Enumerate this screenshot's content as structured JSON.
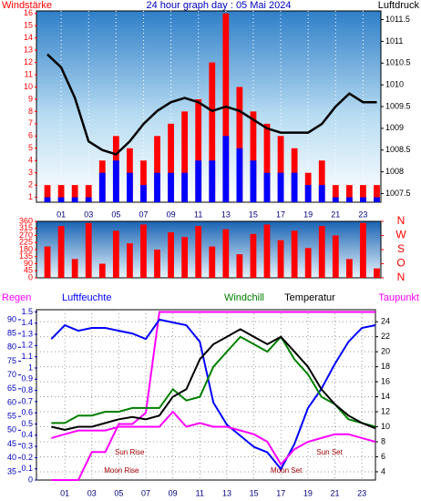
{
  "chart_data": [
    {
      "type": "combo",
      "title": "24 hour graph day : 05 Mai 2024",
      "y_label": "Windstärke",
      "y2_label": "Luftdruck",
      "x": [
        0,
        1,
        2,
        3,
        4,
        5,
        6,
        7,
        8,
        9,
        10,
        11,
        12,
        13,
        14,
        15,
        16,
        17,
        18,
        19,
        20,
        21,
        22,
        23,
        24
      ],
      "xlim": [
        -0.8,
        24.3
      ],
      "xticks": [
        {
          "value": 1,
          "label": "01"
        },
        {
          "value": 3,
          "label": "03"
        },
        {
          "value": 5,
          "label": "05"
        },
        {
          "value": 7,
          "label": "07"
        },
        {
          "value": 9,
          "label": "09"
        },
        {
          "value": 11,
          "label": "11"
        },
        {
          "value": 13,
          "label": "13"
        },
        {
          "value": 15,
          "label": "15"
        },
        {
          "value": 17,
          "label": "17"
        },
        {
          "value": 19,
          "label": "19"
        },
        {
          "value": 21,
          "label": "21"
        },
        {
          "value": 23,
          "label": "23"
        }
      ],
      "ylim": [
        0.6,
        16.2
      ],
      "yticks": [
        1,
        2,
        3,
        4,
        5,
        6,
        7,
        8,
        9,
        10,
        11,
        12,
        13,
        14,
        15,
        16
      ],
      "y2lim": [
        1007.3,
        1011.7
      ],
      "y2ticks": [
        1007.5,
        1008,
        1008.5,
        1009,
        1009.5,
        1010,
        1010.5,
        1011,
        1011.5
      ],
      "grid": true,
      "series": [
        {
          "mark": "bar",
          "color": "#ff0000",
          "values": [
            2,
            2,
            2,
            2,
            4,
            6,
            5,
            4,
            6,
            7,
            8,
            9,
            12,
            16,
            10,
            8,
            7,
            6,
            5,
            3,
            4,
            2,
            2,
            2,
            2
          ]
        },
        {
          "mark": "bar",
          "color": "#0000ff",
          "values": [
            1,
            1,
            1,
            1,
            3,
            4,
            3,
            2,
            3,
            3,
            3,
            4,
            4,
            6,
            5,
            4,
            3,
            3,
            3,
            2,
            2,
            1,
            1,
            1,
            1
          ]
        },
        {
          "mark": "line",
          "axis": "y2",
          "color": "#000000",
          "values": [
            1010.7,
            1010.4,
            1009.7,
            1008.7,
            1008.5,
            1008.4,
            1008.7,
            1009.1,
            1009.4,
            1009.6,
            1009.7,
            1009.6,
            1009.4,
            1009.5,
            1009.4,
            1009.2,
            1009.0,
            1008.9,
            1008.9,
            1008.9,
            1009.1,
            1009.5,
            1009.8,
            1009.6,
            1009.6
          ]
        }
      ]
    },
    {
      "type": "bar",
      "x": [
        0,
        1,
        2,
        3,
        4,
        5,
        6,
        7,
        8,
        9,
        10,
        11,
        12,
        13,
        14,
        15,
        16,
        17,
        18,
        19,
        20,
        21,
        22,
        23,
        24
      ],
      "xlim": [
        -0.8,
        24.3
      ],
      "ylim": [
        0,
        360
      ],
      "yticks": [
        0,
        45,
        90,
        135,
        180,
        225,
        270,
        315,
        360
      ],
      "y2lim": [
        0,
        360
      ],
      "y2ticks": [
        {
          "value": 360,
          "label": "N"
        },
        {
          "value": 270,
          "label": "W"
        },
        {
          "value": 180,
          "label": "S"
        },
        {
          "value": 90,
          "label": "O"
        },
        {
          "value": 0,
          "label": "N"
        }
      ],
      "grid": false,
      "series": [
        {
          "mark": "bar",
          "color": "#ff0000",
          "values": [
            200,
            330,
            120,
            350,
            90,
            300,
            220,
            340,
            180,
            290,
            260,
            330,
            200,
            310,
            150,
            280,
            340,
            240,
            300,
            190,
            330,
            270,
            120,
            350,
            60
          ]
        }
      ]
    },
    {
      "type": "line",
      "x": [
        0,
        1,
        2,
        3,
        4,
        5,
        6,
        7,
        8,
        9,
        10,
        11,
        12,
        13,
        14,
        15,
        16,
        17,
        18,
        19,
        20,
        21,
        22,
        23,
        24
      ],
      "xlim": [
        -1.1,
        24
      ],
      "xticks": [
        {
          "value": 1,
          "label": "01"
        },
        {
          "value": 3,
          "label": "03"
        },
        {
          "value": 5,
          "label": "05"
        },
        {
          "value": 7,
          "label": "07"
        },
        {
          "value": 9,
          "label": "09"
        },
        {
          "value": 11,
          "label": "11"
        },
        {
          "value": 13,
          "label": "13"
        },
        {
          "value": 15,
          "label": "15"
        },
        {
          "value": 17,
          "label": "17"
        },
        {
          "value": 19,
          "label": "19"
        },
        {
          "value": 21,
          "label": "21"
        },
        {
          "value": 23,
          "label": "23"
        }
      ],
      "ylim": [
        32,
        93.6
      ],
      "yticks": [
        35,
        40,
        45,
        50,
        55,
        60,
        65,
        70,
        75,
        80,
        85,
        90
      ],
      "y2lim": [
        2.9,
        25.6
      ],
      "y2ticks": [
        4,
        6,
        8,
        10,
        12,
        14,
        16,
        18,
        20,
        22,
        24
      ],
      "y3lim": [
        0,
        1.52
      ],
      "y3ticks": [
        0,
        0.1,
        0.2,
        0.3,
        0.4,
        0.5,
        0.6,
        0.7,
        0.8,
        0.9,
        1,
        1.1,
        1.2,
        1.3,
        1.4,
        1.5
      ],
      "grid": true,
      "series": [
        {
          "name": "Regen",
          "axis": "y3",
          "color": "#ff00ff",
          "values": [
            0,
            0,
            0,
            0.25,
            0.25,
            0.5,
            0.5,
            0.6,
            1.5,
            1.5,
            1.5,
            1.5,
            1.5,
            1.5,
            1.5,
            1.5,
            1.5,
            1.5,
            1.5,
            1.5,
            1.5,
            1.5,
            1.5,
            1.5,
            1.5
          ]
        },
        {
          "name": "Luftfeuchte",
          "axis": "y",
          "color": "#0000ff",
          "values": [
            83,
            88,
            86,
            87,
            87,
            86,
            85,
            83,
            90,
            89,
            88,
            82,
            60,
            52,
            48,
            44,
            42,
            36,
            45,
            58,
            65,
            74,
            82,
            87,
            88
          ]
        },
        {
          "name": "Windchill",
          "axis": "y2",
          "color": "#008000",
          "values": [
            10.5,
            10.5,
            11.5,
            11.5,
            12,
            12,
            12.5,
            12.5,
            12.5,
            15,
            13.5,
            14,
            18,
            20,
            22,
            21,
            20,
            22,
            19,
            17,
            14,
            13,
            11,
            10.5,
            10
          ]
        },
        {
          "name": "Temperatur",
          "axis": "y2",
          "color": "#000000",
          "values": [
            10,
            9.6,
            10,
            10,
            10.5,
            11,
            11.3,
            11,
            11.5,
            14,
            15,
            19,
            21,
            22,
            23,
            22,
            21,
            22,
            20,
            18,
            15,
            13,
            11.5,
            10.5,
            9.8
          ]
        },
        {
          "name": "Taupunkt",
          "axis": "y2",
          "color": "#ff00ff",
          "values": [
            8.5,
            9,
            9.5,
            9.5,
            9.5,
            10,
            10,
            10,
            10,
            12,
            10,
            10.5,
            10,
            10,
            9.5,
            9,
            8,
            5,
            7,
            8,
            8.5,
            9,
            9,
            8.5,
            8
          ]
        }
      ],
      "annotations": [
        {
          "text": "Sun Rise",
          "x": 5.8
        },
        {
          "text": "Moon Rise",
          "x": 5.2
        },
        {
          "text": "Sun Set",
          "x": 20.6
        },
        {
          "text": "Moon Set",
          "x": 17.4
        }
      ]
    }
  ]
}
